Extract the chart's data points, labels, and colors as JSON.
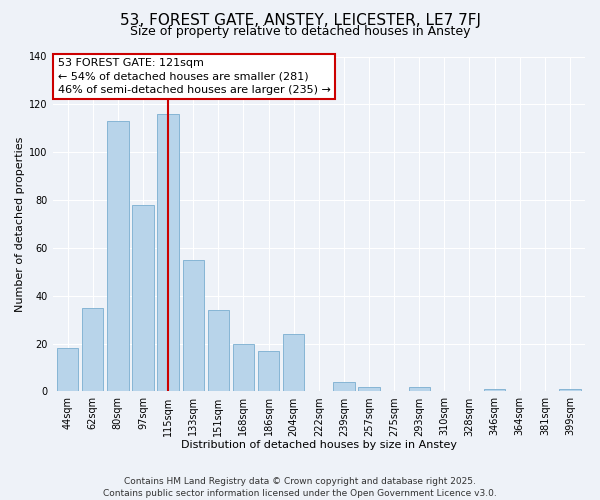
{
  "title": "53, FOREST GATE, ANSTEY, LEICESTER, LE7 7FJ",
  "subtitle": "Size of property relative to detached houses in Anstey",
  "xlabel": "Distribution of detached houses by size in Anstey",
  "ylabel": "Number of detached properties",
  "categories": [
    "44sqm",
    "62sqm",
    "80sqm",
    "97sqm",
    "115sqm",
    "133sqm",
    "151sqm",
    "168sqm",
    "186sqm",
    "204sqm",
    "222sqm",
    "239sqm",
    "257sqm",
    "275sqm",
    "293sqm",
    "310sqm",
    "328sqm",
    "346sqm",
    "364sqm",
    "381sqm",
    "399sqm"
  ],
  "values": [
    18,
    35,
    113,
    78,
    116,
    55,
    34,
    20,
    17,
    24,
    0,
    4,
    2,
    0,
    2,
    0,
    0,
    1,
    0,
    0,
    1
  ],
  "bar_color": "#b8d4ea",
  "bar_edge_color": "#7aaed0",
  "highlight_index": 4,
  "red_line_color": "#cc0000",
  "ylim": [
    0,
    140
  ],
  "yticks": [
    0,
    20,
    40,
    60,
    80,
    100,
    120,
    140
  ],
  "annotation_title": "53 FOREST GATE: 121sqm",
  "annotation_line1": "← 54% of detached houses are smaller (281)",
  "annotation_line2": "46% of semi-detached houses are larger (235) →",
  "annotation_box_color": "#ffffff",
  "annotation_box_edge": "#cc0000",
  "footer1": "Contains HM Land Registry data © Crown copyright and database right 2025.",
  "footer2": "Contains public sector information licensed under the Open Government Licence v3.0.",
  "background_color": "#eef2f8",
  "grid_color": "#ffffff",
  "title_fontsize": 11,
  "subtitle_fontsize": 9,
  "axis_label_fontsize": 8,
  "tick_fontsize": 7,
  "annotation_fontsize": 8,
  "footer_fontsize": 6.5
}
